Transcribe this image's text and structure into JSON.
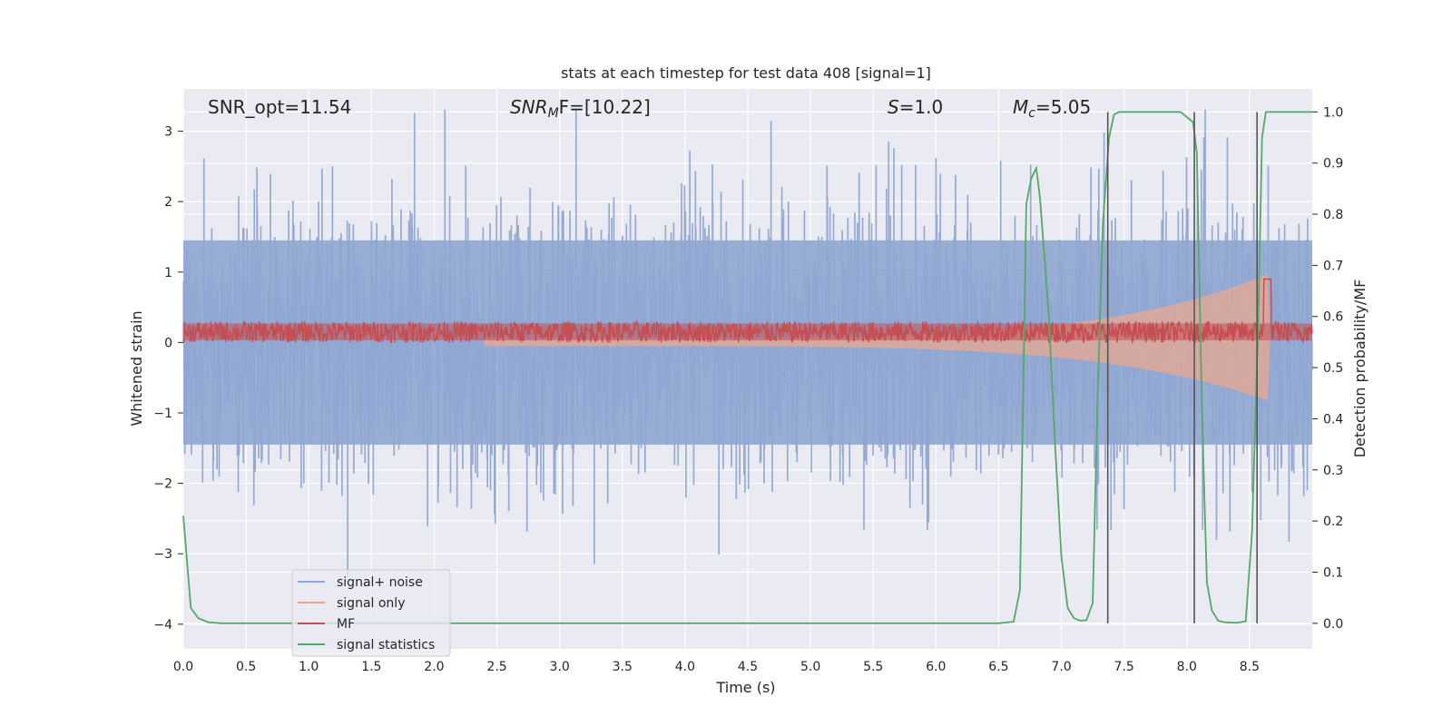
{
  "chart_data": {
    "type": "line",
    "title": "stats at each timestep for test data 408 [signal=1]",
    "xlabel": "Time (s)",
    "ylabel": "Whitened strain",
    "y2label": "Detection probability/MF",
    "xlim": [
      0.0,
      9.0
    ],
    "ylim": [
      -4.35,
      3.6
    ],
    "y2lim": [
      -0.05,
      1.045
    ],
    "x_ticks": [
      "0.0",
      "0.5",
      "1.0",
      "1.5",
      "2.0",
      "2.5",
      "3.0",
      "3.5",
      "4.0",
      "4.5",
      "5.0",
      "5.5",
      "6.0",
      "6.5",
      "7.0",
      "7.5",
      "8.0",
      "8.5"
    ],
    "y_ticks": [
      "−4",
      "−3",
      "−2",
      "−1",
      "0",
      "1",
      "2",
      "3"
    ],
    "y2_ticks": [
      "0.0",
      "0.1",
      "0.2",
      "0.3",
      "0.4",
      "0.5",
      "0.6",
      "0.7",
      "0.8",
      "0.9",
      "1.0"
    ],
    "grid": true,
    "legend_position": "lower-left",
    "annotations": {
      "snr_opt": "SNR_opt=11.54",
      "snr_mf_main": "SNR",
      "snr_mf_sub": "M",
      "snr_mf_rest": "F=[10.22]",
      "s_main": "S",
      "s_rest": "=1.0",
      "mc_main": "M",
      "mc_sub": "c",
      "mc_rest": "=5.05"
    },
    "series": [
      {
        "name": "signal+ noise",
        "color": "#8fa6d0",
        "axis": "left",
        "style": "dense noise, approx amplitude ±1.6 with peaks to ±3"
      },
      {
        "name": "signal only",
        "color": "#e8a890",
        "axis": "left",
        "style": "chirp envelope growing from ~0.05 at t=2.5 to ~1.0 at t=8.6"
      },
      {
        "name": "MF",
        "color": "#c44e52",
        "axis": "left",
        "style": "band between ~0 and ~0.3"
      },
      {
        "name": "signal statistics",
        "color": "#55a868",
        "axis": "right",
        "x": [
          0.0,
          0.06,
          0.12,
          0.2,
          0.3,
          0.5,
          1.0,
          2.0,
          3.0,
          4.0,
          5.0,
          6.0,
          6.5,
          6.62,
          6.67,
          6.72,
          6.76,
          6.8,
          6.83,
          6.9,
          6.95,
          7.0,
          7.05,
          7.1,
          7.15,
          7.2,
          7.25,
          7.29,
          7.33,
          7.38,
          7.42,
          7.46,
          7.5,
          7.6,
          7.8,
          7.95,
          8.0,
          8.05,
          8.08,
          8.12,
          8.16,
          8.2,
          8.25,
          8.3,
          8.4,
          8.47,
          8.52,
          8.57,
          8.6,
          8.63,
          8.7,
          8.8,
          9.0
        ],
        "y": [
          0.21,
          0.03,
          0.01,
          0.002,
          0.0,
          0.0,
          0.0,
          0.0,
          0.0,
          0.0,
          0.0,
          0.0,
          0.0,
          0.003,
          0.065,
          0.82,
          0.87,
          0.89,
          0.83,
          0.6,
          0.35,
          0.13,
          0.03,
          0.01,
          0.005,
          0.006,
          0.04,
          0.45,
          0.78,
          0.95,
          0.995,
          1.0,
          1.0,
          1.0,
          1.0,
          1.0,
          0.99,
          0.98,
          0.92,
          0.42,
          0.08,
          0.025,
          0.005,
          0.002,
          0.001,
          0.004,
          0.18,
          0.6,
          0.95,
          1.0,
          1.0,
          1.0,
          1.0
        ]
      }
    ],
    "vlines_x": [
      7.37,
      8.06,
      8.56
    ],
    "vline_color": "#555555"
  },
  "colors": {
    "plot_bg": "#eaeaf2",
    "grid": "#ffffff",
    "noise": "#8fa6d0",
    "signal": "#e8a890",
    "mf": "#c44e52",
    "stat": "#55a868"
  }
}
